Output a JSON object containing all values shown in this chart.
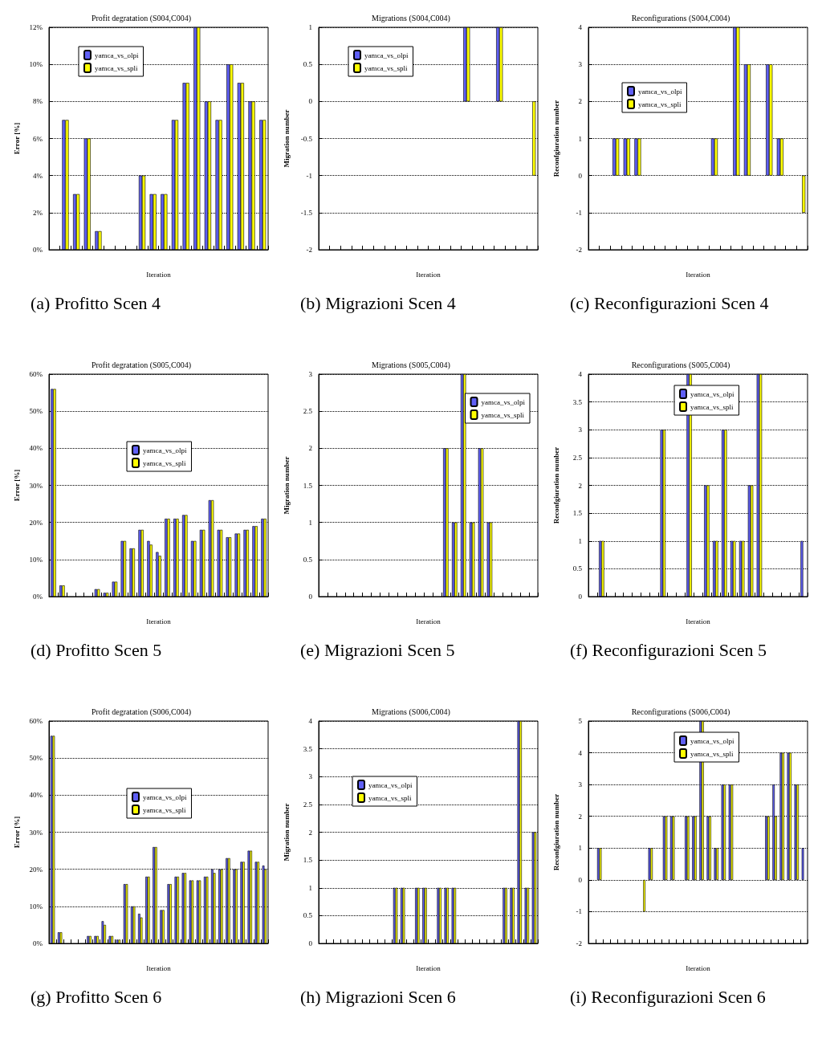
{
  "chart_data": [
    {
      "type": "bar",
      "title": "Profit degratation (S004,C004)",
      "xlabel": "Iteration",
      "ylabel": "Error [%]",
      "categories": [
        null,
        null,
        null,
        null,
        null,
        null,
        null,
        null,
        null,
        null,
        null,
        null,
        null,
        null,
        null,
        null,
        null,
        null,
        null,
        null
      ],
      "series": [
        {
          "name": "yamca_vs_olpi",
          "color": "#5f5ff5",
          "values": [
            0,
            7,
            3,
            6,
            1,
            0,
            0,
            0,
            4,
            3,
            3,
            7,
            9,
            12,
            8,
            7,
            10,
            9,
            8,
            7
          ]
        },
        {
          "name": "yamca_vs_spli",
          "color": "#ffff00",
          "values": [
            0,
            7,
            3,
            6,
            1,
            0,
            0,
            0,
            4,
            3,
            3,
            7,
            9,
            12,
            8,
            7,
            10,
            9,
            8,
            7
          ]
        }
      ],
      "ylim": [
        0,
        12
      ],
      "yticks": [
        {
          "value": 0,
          "label": "0%"
        },
        {
          "value": 2,
          "label": "2%"
        },
        {
          "value": 4,
          "label": "4%"
        },
        {
          "value": 6,
          "label": "6%"
        },
        {
          "value": 8,
          "label": "8%"
        },
        {
          "value": 10,
          "label": "10%"
        },
        {
          "value": 12,
          "label": "12%"
        }
      ],
      "grid": "y",
      "legend": "top left",
      "tick_labels": "y",
      "annotations": [
        "(a) Profitto Scen 4"
      ]
    },
    {
      "type": "bar",
      "title": "Migrations (S004,C004)",
      "xlabel": "Iteration",
      "ylabel": "Migration number",
      "categories": [
        null,
        null,
        null,
        null,
        null,
        null,
        null,
        null,
        null,
        null,
        null,
        null,
        null,
        null,
        null,
        null,
        null,
        null,
        null,
        null
      ],
      "series": [
        {
          "name": "yamca_vs_olpi",
          "color": "#5f5ff5",
          "values": [
            0,
            0,
            0,
            0,
            0,
            0,
            0,
            0,
            0,
            0,
            0,
            0,
            0,
            1,
            0,
            0,
            1,
            0,
            0,
            0
          ]
        },
        {
          "name": "yamca_vs_spli",
          "color": "#ffff00",
          "values": [
            0,
            0,
            0,
            0,
            0,
            0,
            0,
            0,
            0,
            0,
            0,
            0,
            0,
            1,
            0,
            0,
            1,
            0,
            0,
            -1
          ]
        }
      ],
      "ylim": [
        -2,
        1
      ],
      "yticks": [
        -2,
        -1.5,
        -1,
        -0.5,
        0,
        0.5,
        1
      ],
      "grid": "y",
      "legend": "top left",
      "tick_labels": "y",
      "annotations": [
        "(b) Migrazioni Scen 4"
      ]
    },
    {
      "type": "bar",
      "title": "Reconfigurations (S004,C004)",
      "xlabel": "Iteration",
      "ylabel": "Reconfgiuration number",
      "categories": [
        null,
        null,
        null,
        null,
        null,
        null,
        null,
        null,
        null,
        null,
        null,
        null,
        null,
        null,
        null,
        null,
        null,
        null,
        null,
        null
      ],
      "series": [
        {
          "name": "yamca_vs_olpi",
          "color": "#5f5ff5",
          "values": [
            0,
            0,
            1,
            1,
            1,
            0,
            0,
            0,
            0,
            0,
            0,
            1,
            0,
            4,
            3,
            0,
            3,
            1,
            0,
            0
          ]
        },
        {
          "name": "yamca_vs_spli",
          "color": "#ffff00",
          "values": [
            0,
            0,
            1,
            1,
            1,
            0,
            0,
            0,
            0,
            0,
            0,
            1,
            0,
            4,
            3,
            0,
            3,
            1,
            0,
            -1
          ]
        }
      ],
      "ylim": [
        -2,
        4
      ],
      "yticks": [
        -2,
        -1,
        0,
        1,
        2,
        3,
        4
      ],
      "grid": "y",
      "legend": "left",
      "tick_labels": "y",
      "annotations": [
        "(c) Reconfigurazioni Scen 4"
      ]
    },
    {
      "type": "bar",
      "title": "Profit degratation (S005,C004)",
      "xlabel": "Iteration",
      "ylabel": "Error [%]",
      "categories": [
        null,
        null,
        null,
        null,
        null,
        null,
        null,
        null,
        null,
        null,
        null,
        null,
        null,
        null,
        null,
        null,
        null,
        null,
        null,
        null,
        null,
        null,
        null,
        null,
        null
      ],
      "series": [
        {
          "name": "yamca_vs_olpi",
          "color": "#5f5ff5",
          "values": [
            56,
            3,
            0,
            0,
            0,
            2,
            1,
            4,
            15,
            13,
            18,
            15,
            12,
            21,
            21,
            22,
            15,
            18,
            26,
            18,
            16,
            17,
            18,
            19,
            21
          ]
        },
        {
          "name": "yamca_vs_spli",
          "color": "#ffff00",
          "values": [
            56,
            3,
            0,
            0,
            0,
            2,
            1,
            4,
            15,
            13,
            18,
            14,
            11,
            21,
            21,
            22,
            15,
            18,
            26,
            18,
            16,
            17,
            18,
            19,
            21
          ]
        }
      ],
      "ylim": [
        0,
        60
      ],
      "yticks": [
        {
          "value": 0,
          "label": "0%"
        },
        {
          "value": 10,
          "label": "10%"
        },
        {
          "value": 20,
          "label": "20%"
        },
        {
          "value": 30,
          "label": "30%"
        },
        {
          "value": 40,
          "label": "40%"
        },
        {
          "value": 50,
          "label": "50%"
        },
        {
          "value": 60,
          "label": "60%"
        }
      ],
      "grid": "y",
      "legend": "center",
      "tick_labels": "y",
      "annotations": [
        "(d) Profitto Scen 5"
      ]
    },
    {
      "type": "bar",
      "title": "Migrations (S005,C004)",
      "xlabel": "Iteration",
      "ylabel": "Migration number",
      "categories": [
        null,
        null,
        null,
        null,
        null,
        null,
        null,
        null,
        null,
        null,
        null,
        null,
        null,
        null,
        null,
        null,
        null,
        null,
        null,
        null,
        null,
        null,
        null,
        null,
        null
      ],
      "series": [
        {
          "name": "yamca_vs_olpi",
          "color": "#5f5ff5",
          "values": [
            0,
            0,
            0,
            0,
            0,
            0,
            0,
            0,
            0,
            0,
            0,
            0,
            0,
            0,
            2,
            1,
            3,
            1,
            2,
            1,
            0,
            0,
            0,
            0,
            0
          ]
        },
        {
          "name": "yamca_vs_spli",
          "color": "#ffff00",
          "values": [
            0,
            0,
            0,
            0,
            0,
            0,
            0,
            0,
            0,
            0,
            0,
            0,
            0,
            0,
            2,
            1,
            3,
            1,
            2,
            1,
            0,
            0,
            0,
            0,
            0
          ]
        }
      ],
      "ylim": [
        0,
        3
      ],
      "yticks": [
        0,
        0.5,
        1,
        1.5,
        2,
        2.5,
        3
      ],
      "grid": "y",
      "legend": "top right",
      "tick_labels": "y",
      "annotations": [
        "(e) Migrazioni Scen 5"
      ]
    },
    {
      "type": "bar",
      "title": "Reconfigurations (S005,C004)",
      "xlabel": "Iteration",
      "ylabel": "Reconfgiuration number",
      "categories": [
        null,
        null,
        null,
        null,
        null,
        null,
        null,
        null,
        null,
        null,
        null,
        null,
        null,
        null,
        null,
        null,
        null,
        null,
        null,
        null,
        null,
        null,
        null,
        null,
        null
      ],
      "series": [
        {
          "name": "yamca_vs_olpi",
          "color": "#5f5ff5",
          "values": [
            0,
            1,
            0,
            0,
            0,
            0,
            0,
            0,
            3,
            0,
            0,
            4,
            0,
            2,
            1,
            3,
            1,
            1,
            2,
            4,
            0,
            0,
            0,
            0,
            1
          ]
        },
        {
          "name": "yamca_vs_spli",
          "color": "#ffff00",
          "values": [
            0,
            1,
            0,
            0,
            0,
            0,
            0,
            0,
            3,
            0,
            0,
            4,
            0,
            2,
            1,
            3,
            1,
            1,
            2,
            4,
            0,
            0,
            0,
            0,
            0
          ]
        }
      ],
      "ylim": [
        0,
        4
      ],
      "yticks": [
        0,
        0.5,
        1,
        1.5,
        2,
        2.5,
        3,
        3.5,
        4
      ],
      "grid": "y",
      "legend": "top",
      "tick_labels": "y",
      "annotations": [
        "(f) Reconfigurazioni Scen 5"
      ]
    },
    {
      "type": "bar",
      "title": "Profit degratation (S006,C004)",
      "xlabel": "Iteration",
      "ylabel": "Error [%]",
      "categories": [
        null,
        null,
        null,
        null,
        null,
        null,
        null,
        null,
        null,
        null,
        null,
        null,
        null,
        null,
        null,
        null,
        null,
        null,
        null,
        null,
        null,
        null,
        null,
        null,
        null,
        null,
        null,
        null,
        null,
        null
      ],
      "series": [
        {
          "name": "yamca_vs_olpi",
          "color": "#5f5ff5",
          "values": [
            56,
            3,
            0,
            0,
            0,
            2,
            2,
            6,
            2,
            1,
            16,
            10,
            8,
            18,
            26,
            9,
            16,
            18,
            19,
            17,
            17,
            18,
            20,
            20,
            23,
            20,
            22,
            25,
            22,
            21
          ]
        },
        {
          "name": "yamca_vs_spli",
          "color": "#ffff00",
          "values": [
            56,
            3,
            0,
            0,
            0,
            2,
            2,
            5,
            2,
            1,
            16,
            10,
            7,
            18,
            26,
            9,
            16,
            18,
            19,
            17,
            17,
            18,
            19,
            20,
            23,
            20,
            22,
            25,
            22,
            20
          ]
        }
      ],
      "ylim": [
        0,
        60
      ],
      "yticks": [
        {
          "value": 0,
          "label": "0%"
        },
        {
          "value": 10,
          "label": "10%"
        },
        {
          "value": 20,
          "label": "20%"
        },
        {
          "value": 30,
          "label": "30%"
        },
        {
          "value": 40,
          "label": "40%"
        },
        {
          "value": 50,
          "label": "50%"
        },
        {
          "value": 60,
          "label": "60%"
        }
      ],
      "grid": "y",
      "legend": "center",
      "tick_labels": "y",
      "annotations": [
        "(g) Profitto Scen 6"
      ]
    },
    {
      "type": "bar",
      "title": "Migrations (S006,C004)",
      "xlabel": "Iteration",
      "ylabel": "Migration number",
      "categories": [
        null,
        null,
        null,
        null,
        null,
        null,
        null,
        null,
        null,
        null,
        null,
        null,
        null,
        null,
        null,
        null,
        null,
        null,
        null,
        null,
        null,
        null,
        null,
        null,
        null,
        null,
        null,
        null,
        null,
        null
      ],
      "series": [
        {
          "name": "yamca_vs_olpi",
          "color": "#5f5ff5",
          "values": [
            0,
            0,
            0,
            0,
            0,
            0,
            0,
            0,
            0,
            0,
            1,
            1,
            0,
            1,
            1,
            0,
            1,
            1,
            1,
            0,
            0,
            0,
            0,
            0,
            0,
            1,
            1,
            4,
            1,
            2
          ]
        },
        {
          "name": "yamca_vs_spli",
          "color": "#ffff00",
          "values": [
            0,
            0,
            0,
            0,
            0,
            0,
            0,
            0,
            0,
            0,
            1,
            1,
            0,
            1,
            1,
            0,
            1,
            1,
            1,
            0,
            0,
            0,
            0,
            0,
            0,
            1,
            1,
            4,
            1,
            2
          ]
        }
      ],
      "ylim": [
        0,
        4
      ],
      "yticks": [
        0,
        0.5,
        1,
        1.5,
        2,
        2.5,
        3,
        3.5,
        4
      ],
      "grid": "y",
      "legend": "left",
      "tick_labels": "y",
      "annotations": [
        "(h) Migrazioni Scen 6"
      ]
    },
    {
      "type": "bar",
      "title": "Reconfigurations (S006,C004)",
      "xlabel": "Iteration",
      "ylabel": "Reconfgiuration number",
      "categories": [
        null,
        null,
        null,
        null,
        null,
        null,
        null,
        null,
        null,
        null,
        null,
        null,
        null,
        null,
        null,
        null,
        null,
        null,
        null,
        null,
        null,
        null,
        null,
        null,
        null,
        null,
        null,
        null,
        null,
        null
      ],
      "series": [
        {
          "name": "yamca_vs_olpi",
          "color": "#5f5ff5",
          "values": [
            0,
            1,
            0,
            0,
            0,
            0,
            0,
            0,
            1,
            0,
            2,
            2,
            0,
            2,
            2,
            5,
            2,
            1,
            3,
            3,
            0,
            0,
            0,
            0,
            2,
            3,
            4,
            4,
            3,
            1
          ]
        },
        {
          "name": "yamca_vs_spli",
          "color": "#ffff00",
          "values": [
            0,
            1,
            0,
            0,
            0,
            0,
            0,
            -1,
            1,
            0,
            2,
            2,
            0,
            2,
            2,
            5,
            2,
            1,
            3,
            3,
            0,
            0,
            0,
            0,
            2,
            2,
            4,
            4,
            3,
            0
          ]
        }
      ],
      "ylim": [
        -2,
        5
      ],
      "yticks": [
        -2,
        -1,
        0,
        1,
        2,
        3,
        4,
        5
      ],
      "grid": "y",
      "legend": "top",
      "tick_labels": "y",
      "annotations": [
        "(i) Reconfigurazioni Scen 6"
      ]
    }
  ]
}
